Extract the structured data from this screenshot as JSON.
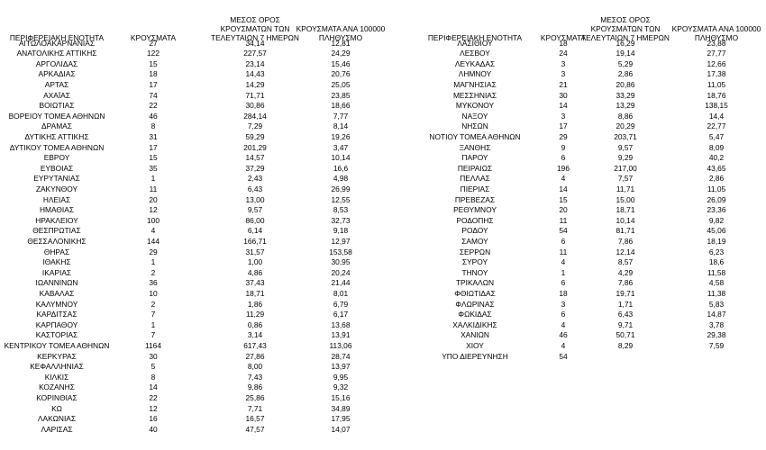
{
  "left_table": {
    "headers": [
      "ΠΕΡΙΦΕΡΕΙΑΚΗ ΕΝΟΤΗΤΑ",
      "ΚΡΟΥΣΜΑΤΑ",
      "ΜΕΣΟΣ ΟΡΟΣ\nΚΡΟΥΣΜΑΤΩΝ ΤΩΝ\nΤΕΛΕΥΤΑΙΩΝ 7 ΗΜΕΡΩΝ",
      "ΚΡΟΥΣΜΑΤΑ ΑΝΑ 100000\nΠΛΗΘΥΣΜΟ"
    ],
    "rows": [
      [
        "ΑΙΤΩΛΟΑΚΑΡΝΑΝΙΑΣ",
        "27",
        "34,14",
        "12,81"
      ],
      [
        "ΑΝΑΤΟΛΙΚΗΣ ΑΤΤΙΚΗΣ",
        "122",
        "227,57",
        "24,29"
      ],
      [
        "ΑΡΓΟΛΙΔΑΣ",
        "15",
        "23,14",
        "15,46"
      ],
      [
        "ΑΡΚΑΔΙΑΣ",
        "18",
        "14,43",
        "20,76"
      ],
      [
        "ΑΡΤΑΣ",
        "17",
        "14,29",
        "25,05"
      ],
      [
        "ΑΧΑΪΑΣ",
        "74",
        "71,71",
        "23,85"
      ],
      [
        "ΒΟΙΩΤΙΑΣ",
        "22",
        "30,86",
        "18,66"
      ],
      [
        "ΒΟΡΕΙΟΥ ΤΟΜΕΑ ΑΘΗΝΩΝ",
        "46",
        "284,14",
        "7,77"
      ],
      [
        "ΔΡΑΜΑΣ",
        "8",
        "7,29",
        "8,14"
      ],
      [
        "ΔΥΤΙΚΗΣ ΑΤΤΙΚΗΣ",
        "31",
        "59,29",
        "19,26"
      ],
      [
        "ΔΥΤΙΚΟΥ ΤΟΜΕΑ ΑΘΗΝΩΝ",
        "17",
        "201,29",
        "3,47"
      ],
      [
        "ΕΒΡΟΥ",
        "15",
        "14,57",
        "10,14"
      ],
      [
        "ΕΥΒΟΙΑΣ",
        "35",
        "37,29",
        "16,6"
      ],
      [
        "ΕΥΡΥΤΑΝΙΑΣ",
        "1",
        "2,43",
        "4,98"
      ],
      [
        "ΖΑΚΥΝΘΟΥ",
        "11",
        "6,43",
        "26,99"
      ],
      [
        "ΗΛΕΙΑΣ",
        "20",
        "13,00",
        "12,55"
      ],
      [
        "ΗΜΑΘΙΑΣ",
        "12",
        "9,57",
        "8,53"
      ],
      [
        "ΗΡΑΚΛΕΙΟΥ",
        "100",
        "86,00",
        "32,73"
      ],
      [
        "ΘΕΣΠΡΩΤΙΑΣ",
        "4",
        "6,14",
        "9,18"
      ],
      [
        "ΘΕΣΣΑΛΟΝΙΚΗΣ",
        "144",
        "166,71",
        "12,97"
      ],
      [
        "ΘΗΡΑΣ",
        "29",
        "31,57",
        "153,58"
      ],
      [
        "ΙΘΑΚΗΣ",
        "1",
        "1,00",
        "30,95"
      ],
      [
        "ΙΚΑΡΙΑΣ",
        "2",
        "4,86",
        "20,24"
      ],
      [
        "ΙΩΑΝΝΙΝΩΝ",
        "36",
        "37,43",
        "21,44"
      ],
      [
        "ΚΑΒΑΛΑΣ",
        "10",
        "18,71",
        "8,01"
      ],
      [
        "ΚΑΛΥΜΝΟΥ",
        "2",
        "1,86",
        "6,79"
      ],
      [
        "ΚΑΡΔΙΤΣΑΣ",
        "7",
        "11,29",
        "6,17"
      ],
      [
        "ΚΑΡΠΑΘΟΥ",
        "1",
        "0,86",
        "13,68"
      ],
      [
        "ΚΑΣΤΟΡΙΑΣ",
        "7",
        "3,14",
        "13,91"
      ],
      [
        "ΚΕΝΤΡΙΚΟΥ ΤΟΜΕΑ ΑΘΗΝΩΝ",
        "1164",
        "617,43",
        "113,06"
      ],
      [
        "ΚΕΡΚΥΡΑΣ",
        "30",
        "27,86",
        "28,74"
      ],
      [
        "ΚΕΦΑΛΛΗΝΙΑΣ",
        "5",
        "8,00",
        "13,97"
      ],
      [
        "ΚΙΛΚΙΣ",
        "8",
        "7,43",
        "9,95"
      ],
      [
        "ΚΟΖΑΝΗΣ",
        "14",
        "9,86",
        "9,32"
      ],
      [
        "ΚΟΡΙΝΘΙΑΣ",
        "22",
        "25,86",
        "15,16"
      ],
      [
        "ΚΩ",
        "12",
        "7,71",
        "34,89"
      ],
      [
        "ΛΑΚΩΝΙΑΣ",
        "16",
        "16,57",
        "17,95"
      ],
      [
        "ΛΑΡΙΣΑΣ",
        "40",
        "47,57",
        "14,07"
      ]
    ]
  },
  "right_table": {
    "headers": [
      "ΠΕΡΙΦΕΡΕΙΑΚΗ ΕΝΟΤΗΤΑ",
      "ΚΡΟΥΣΜΑΤΑ",
      "ΜΕΣΟΣ ΟΡΟΣ\nΚΡΟΥΣΜΑΤΩΝ ΤΩΝ\nΤΕΛΕΥΤΑΙΩΝ 7 ΗΜΕΡΩΝ",
      "ΚΡΟΥΣΜΑΤΑ ΑΝΑ 100000\nΠΛΗΘΥΣΜΟ"
    ],
    "rows": [
      [
        "ΛΑΣΙΘΙΟΥ",
        "18",
        "16,29",
        "23,88"
      ],
      [
        "ΛΕΣΒΟΥ",
        "24",
        "19,14",
        "27,77"
      ],
      [
        "ΛΕΥΚΑΔΑΣ",
        "3",
        "5,29",
        "12,66"
      ],
      [
        "ΛΗΜΝΟΥ",
        "3",
        "2,86",
        "17,38"
      ],
      [
        "ΜΑΓΝΗΣΙΑΣ",
        "21",
        "20,86",
        "11,05"
      ],
      [
        "ΜΕΣΣΗΝΙΑΣ",
        "30",
        "33,29",
        "18,76"
      ],
      [
        "ΜΥΚΟΝΟΥ",
        "14",
        "13,29",
        "138,15"
      ],
      [
        "ΝΑΞΟΥ",
        "3",
        "8,86",
        "14,4"
      ],
      [
        "ΝΗΣΩΝ",
        "17",
        "20,29",
        "22,77"
      ],
      [
        "ΝΟΤΙΟΥ ΤΟΜΕΑ ΑΘΗΝΩΝ",
        "29",
        "203,71",
        "5,47"
      ],
      [
        "ΞΑΝΘΗΣ",
        "9",
        "9,57",
        "8,09"
      ],
      [
        "ΠΑΡΟΥ",
        "6",
        "9,29",
        "40,2"
      ],
      [
        "ΠΕΙΡΑΙΩΣ",
        "196",
        "217,00",
        "43,65"
      ],
      [
        "ΠΕΛΛΑΣ",
        "4",
        "7,57",
        "2,86"
      ],
      [
        "ΠΙΕΡΙΑΣ",
        "14",
        "11,71",
        "11,05"
      ],
      [
        "ΠΡΕΒΕΖΑΣ",
        "15",
        "15,00",
        "26,09"
      ],
      [
        "ΡΕΘΥΜΝΟΥ",
        "20",
        "18,71",
        "23,36"
      ],
      [
        "ΡΟΔΟΠΗΣ",
        "11",
        "10,14",
        "9,82"
      ],
      [
        "ΡΟΔΟΥ",
        "54",
        "81,71",
        "45,06"
      ],
      [
        "ΣΑΜΟΥ",
        "6",
        "7,86",
        "18,19"
      ],
      [
        "ΣΕΡΡΩΝ",
        "11",
        "12,14",
        "6,23"
      ],
      [
        "ΣΥΡΟΥ",
        "4",
        "8,57",
        "18,6"
      ],
      [
        "ΤΗΝΟΥ",
        "1",
        "4,29",
        "11,58"
      ],
      [
        "ΤΡΙΚΑΛΩΝ",
        "6",
        "7,86",
        "4,58"
      ],
      [
        "ΦΘΙΩΤΙΔΑΣ",
        "18",
        "19,71",
        "11,38"
      ],
      [
        "ΦΛΩΡΙΝΑΣ",
        "3",
        "1,71",
        "5,83"
      ],
      [
        "ΦΩΚΙΔΑΣ",
        "6",
        "6,43",
        "14,87"
      ],
      [
        "ΧΑΛΚΙΔΙΚΗΣ",
        "4",
        "9,71",
        "3,78"
      ],
      [
        "ΧΑΝΙΩΝ",
        "46",
        "50,71",
        "29,38"
      ],
      [
        "ΧΙΟΥ",
        "4",
        "8,29",
        "7,59"
      ],
      [
        "ΥΠΟ ΔΙΕΡΕΥΝΗΣΗ",
        "54"
      ]
    ]
  }
}
